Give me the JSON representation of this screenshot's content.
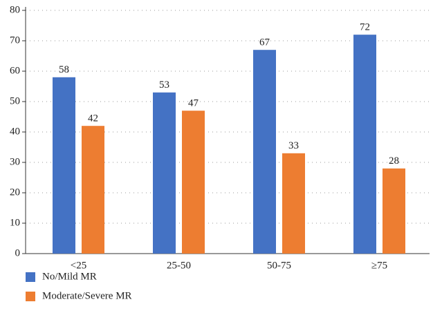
{
  "chart_data": {
    "type": "bar",
    "categories": [
      "<25",
      "25-50",
      "50-75",
      "≥75"
    ],
    "series": [
      {
        "name": "No/Mild MR",
        "color": "#4472c4",
        "values": [
          58,
          53,
          67,
          72
        ]
      },
      {
        "name": "Moderate/Severe MR",
        "color": "#ed7d31",
        "values": [
          42,
          47,
          33,
          28
        ]
      }
    ],
    "ylim": [
      0,
      80
    ],
    "yticks": [
      0,
      10,
      20,
      30,
      40,
      50,
      60,
      70,
      80
    ],
    "grid": true,
    "legend": "bottom-left"
  }
}
